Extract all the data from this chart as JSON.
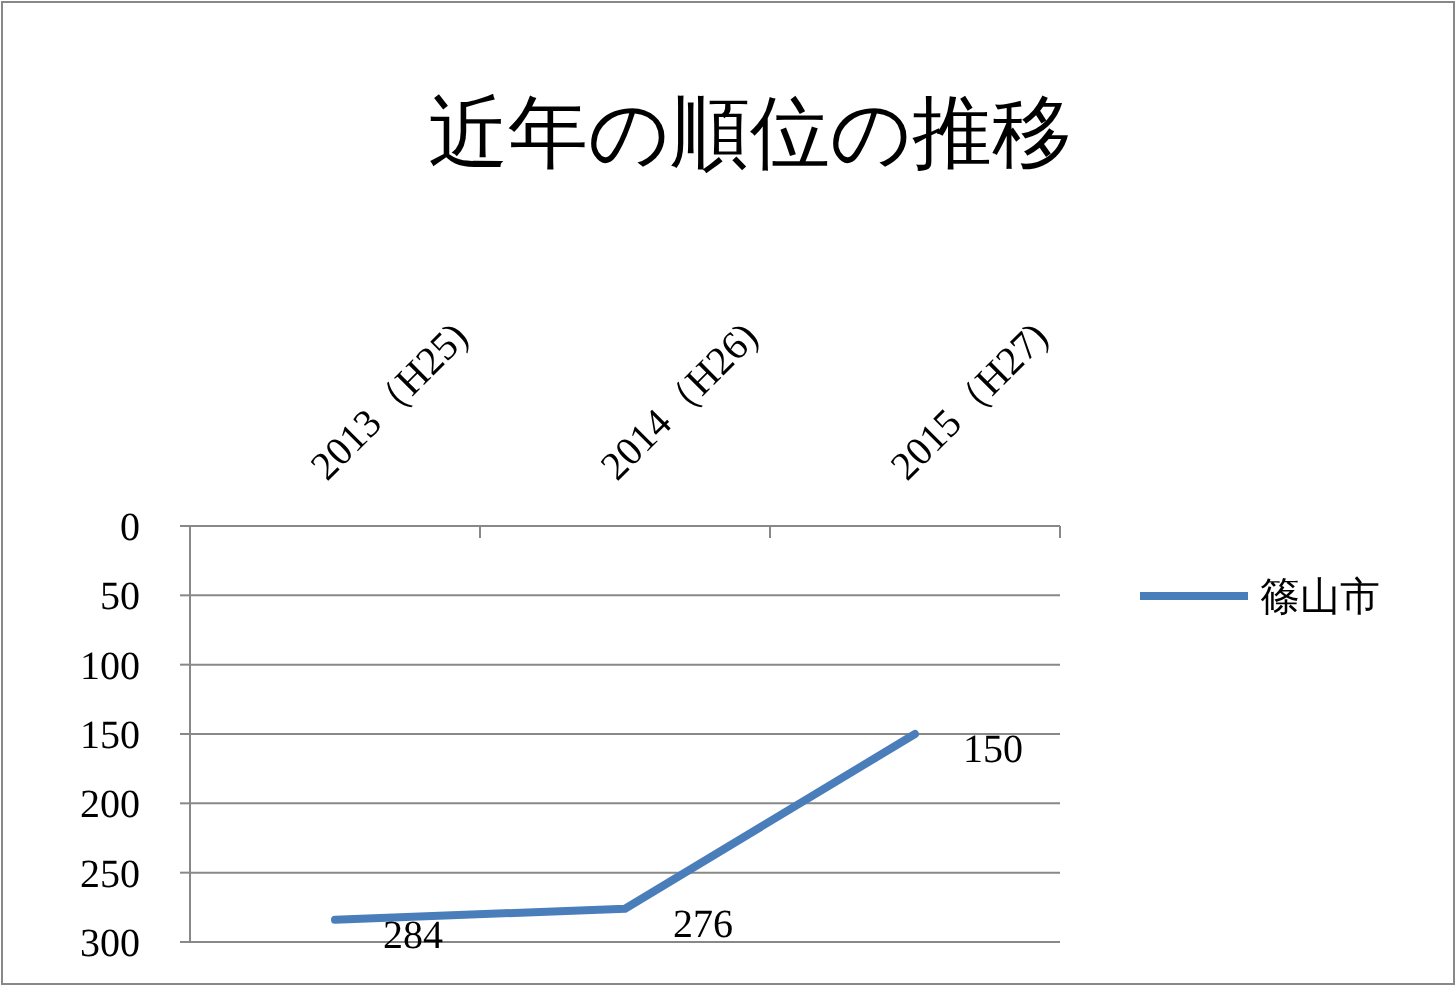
{
  "chart_data": {
    "type": "line",
    "title": "近年の順位の推移",
    "categories": [
      "2013（H25)",
      "2014（H26)",
      "2015（H27)"
    ],
    "series": [
      {
        "name": "篠山市",
        "color": "#4a7ebb",
        "values": [
          284,
          276,
          150
        ]
      }
    ],
    "ylim": [
      300,
      0
    ],
    "yticks": [
      0,
      50,
      100,
      150,
      200,
      250,
      300
    ],
    "grid": "y",
    "legend": "right",
    "data_labels": true,
    "marker": "none",
    "line_style": "solid"
  }
}
